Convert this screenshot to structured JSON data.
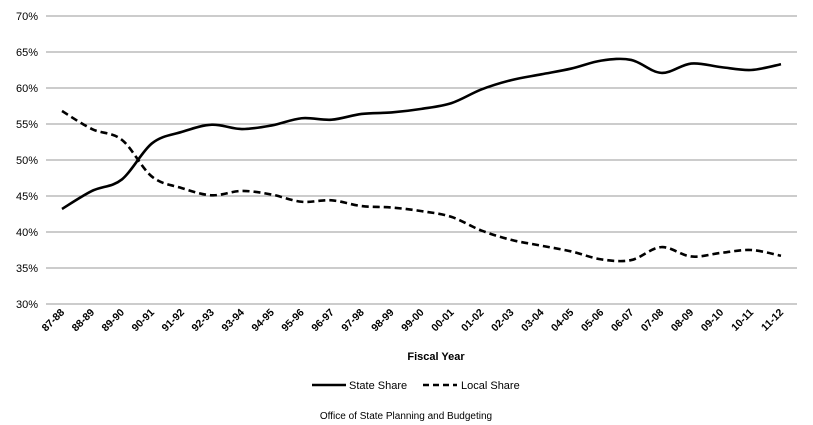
{
  "chart_data": {
    "type": "line",
    "title": "",
    "xlabel": "Fiscal Year",
    "ylabel": "",
    "ylim": [
      30,
      70
    ],
    "y_ticks": [
      "30%",
      "35%",
      "40%",
      "45%",
      "50%",
      "55%",
      "60%",
      "65%",
      "70%"
    ],
    "grid": "horizontal",
    "legend_position": "bottom",
    "categories": [
      "87-88",
      "88-89",
      "89-90",
      "90-91",
      "91-92",
      "92-93",
      "93-94",
      "94-95",
      "95-96",
      "96-97",
      "97-98",
      "98-99",
      "99-00",
      "00-01",
      "01-02",
      "02-03",
      "03-04",
      "04-05",
      "05-06",
      "06-07",
      "07-08",
      "08-09",
      "09-10",
      "10-11",
      "11-12"
    ],
    "series": [
      {
        "name": "State Share",
        "style": "solid",
        "color": "#000000",
        "values": [
          43.2,
          45.7,
          47.3,
          52.3,
          53.9,
          54.9,
          54.3,
          54.8,
          55.8,
          55.6,
          56.4,
          56.6,
          57.1,
          57.9,
          59.8,
          61.1,
          61.9,
          62.7,
          63.8,
          63.9,
          62.1,
          63.4,
          62.9,
          62.5,
          63.3
        ]
      },
      {
        "name": "Local Share",
        "style": "dashed",
        "color": "#000000",
        "values": [
          56.8,
          54.3,
          52.8,
          47.7,
          46.1,
          45.1,
          45.7,
          45.2,
          44.2,
          44.4,
          43.6,
          43.4,
          42.9,
          42.1,
          40.2,
          38.9,
          38.1,
          37.3,
          36.2,
          36.1,
          37.9,
          36.6,
          37.1,
          37.5,
          36.7
        ]
      }
    ]
  },
  "footer": "Office of State Planning and Budgeting"
}
